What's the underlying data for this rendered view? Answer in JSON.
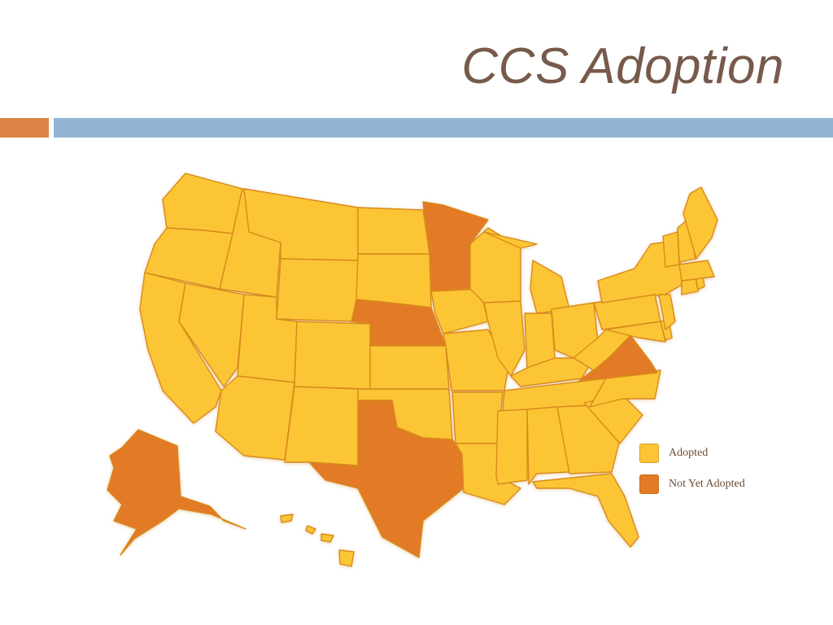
{
  "slide": {
    "title": "CCS Adoption"
  },
  "colors": {
    "title_text": "#775a4c",
    "accent_bar_orange": "#dd8345",
    "accent_bar_blue": "#93b5d4",
    "adopted": "#fcc535",
    "not_yet_adopted": "#e27a26",
    "state_border": "#d98a1c"
  },
  "legend": {
    "items": [
      {
        "label": "Adopted",
        "color": "#fcc535"
      },
      {
        "label": "Not Yet Adopted",
        "color": "#e27a26"
      }
    ]
  },
  "map_data": {
    "not_yet_adopted": [
      "Alaska",
      "Minnesota",
      "Nebraska",
      "Texas",
      "Virginia"
    ],
    "adopted": [
      "Washington",
      "Oregon",
      "California",
      "Idaho",
      "Nevada",
      "Montana",
      "Wyoming",
      "Utah",
      "Arizona",
      "Colorado",
      "New Mexico",
      "North Dakota",
      "South Dakota",
      "Kansas",
      "Oklahoma",
      "Iowa",
      "Missouri",
      "Arkansas",
      "Louisiana",
      "Wisconsin",
      "Illinois",
      "Michigan",
      "Indiana",
      "Ohio",
      "Kentucky",
      "Tennessee",
      "Mississippi",
      "Alabama",
      "Georgia",
      "Florida",
      "South Carolina",
      "North Carolina",
      "West Virginia",
      "Pennsylvania",
      "New York",
      "Maryland",
      "Delaware",
      "New Jersey",
      "Connecticut",
      "Rhode Island",
      "Massachusetts",
      "Vermont",
      "New Hampshire",
      "Maine",
      "Hawaii"
    ]
  }
}
